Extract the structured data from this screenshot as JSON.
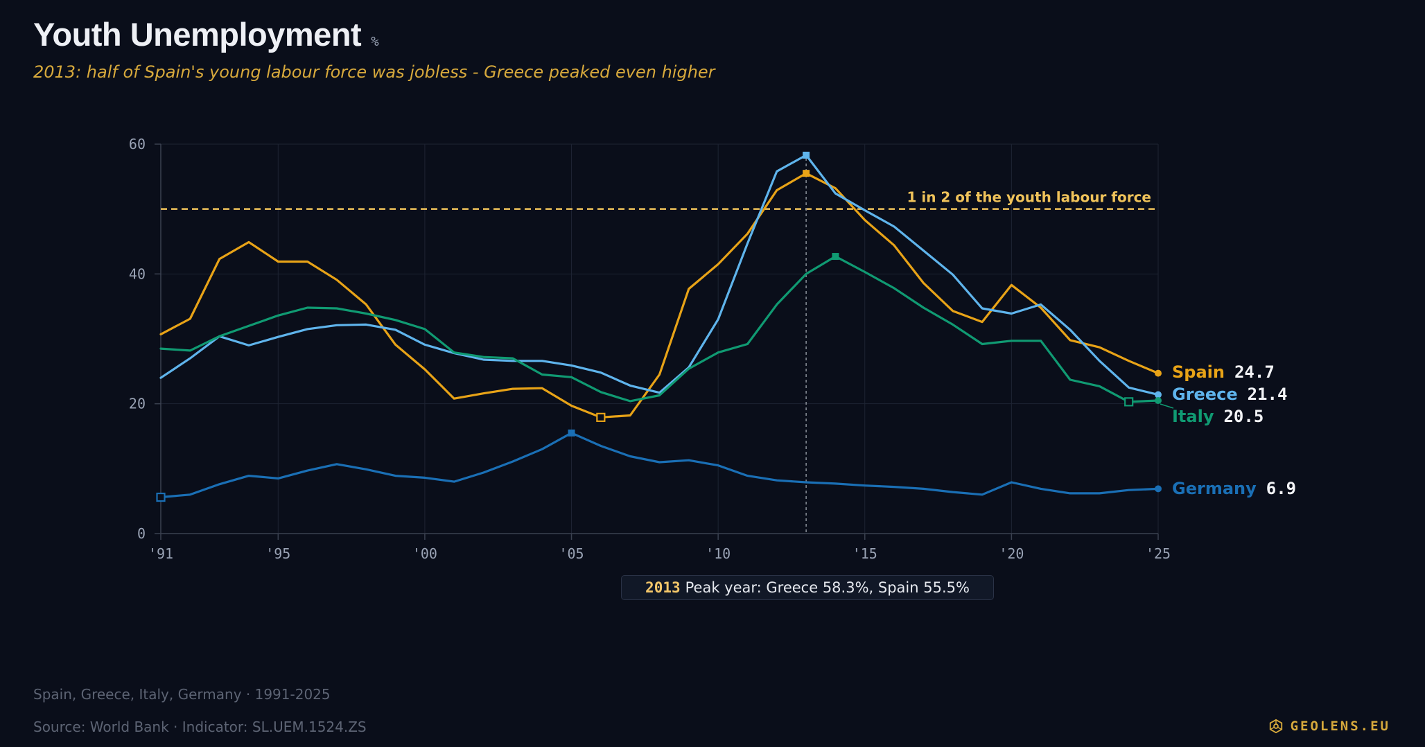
{
  "header": {
    "title": "Youth Unemployment",
    "unit": "%",
    "subtitle": "2013: half of Spain's young labour force was jobless - Greece peaked even higher"
  },
  "annotations": {
    "threshold_label": "1 in 2 of the youth labour force",
    "threshold_value": 50,
    "peak_year": "2013",
    "peak_text": "Peak year: Greece 58.3%, Spain 55.5%",
    "peak_marker_x": 2013
  },
  "footer": {
    "note": "Spain, Greece, Italy, Germany · 1991-2025",
    "source": "Source: World Bank · Indicator: SL.UEM.1524.ZS",
    "brand": "GEOLENS.EU"
  },
  "colors": {
    "background": "#0a0e1a",
    "Spain": "#e8a317",
    "Greece": "#5fb4ec",
    "Italy": "#109a72",
    "Germany": "#1a6fb5",
    "threshold": "#f0c35a",
    "grid": "#1e2433",
    "axis": "#3a4150",
    "tick": "#9aa3b5"
  },
  "chart_data": {
    "type": "line",
    "x": [
      1991,
      1992,
      1993,
      1994,
      1995,
      1996,
      1997,
      1998,
      1999,
      2000,
      2001,
      2002,
      2003,
      2004,
      2005,
      2006,
      2007,
      2008,
      2009,
      2010,
      2011,
      2012,
      2013,
      2014,
      2015,
      2016,
      2017,
      2018,
      2019,
      2020,
      2021,
      2022,
      2023,
      2024,
      2025
    ],
    "xtick_values": [
      1991,
      1995,
      2000,
      2005,
      2010,
      2015,
      2020,
      2025
    ],
    "xtick_labels": [
      "'91",
      "'95",
      "'00",
      "'05",
      "'10",
      "'15",
      "'20",
      "'25"
    ],
    "ytick_values": [
      0,
      20,
      40,
      60
    ],
    "ylim": [
      0,
      60
    ],
    "series": [
      {
        "name": "Spain",
        "end_label": "24.7",
        "values": [
          30.7,
          33.1,
          42.3,
          44.9,
          41.9,
          41.9,
          39.1,
          35.3,
          29.1,
          25.3,
          20.8,
          21.6,
          22.3,
          22.4,
          19.7,
          17.9,
          18.2,
          24.5,
          37.7,
          41.5,
          46.2,
          52.9,
          55.5,
          53.2,
          48.3,
          44.4,
          38.6,
          34.3,
          32.6,
          38.3,
          34.8,
          29.8,
          28.7,
          26.6,
          24.7
        ],
        "markers": [
          {
            "x": 2006,
            "kind": "hollow"
          },
          {
            "x": 2013,
            "kind": "filled"
          }
        ]
      },
      {
        "name": "Greece",
        "end_label": "21.4",
        "values": [
          24.0,
          27.0,
          30.4,
          29.0,
          30.3,
          31.5,
          32.1,
          32.2,
          31.4,
          29.1,
          27.8,
          26.8,
          26.6,
          26.6,
          25.9,
          24.8,
          22.8,
          21.7,
          25.6,
          33.0,
          44.7,
          55.8,
          58.3,
          52.4,
          49.8,
          47.3,
          43.6,
          39.9,
          34.7,
          33.9,
          35.3,
          31.4,
          26.6,
          22.5,
          21.4
        ],
        "markers": [
          {
            "x": 2013,
            "kind": "filled"
          }
        ]
      },
      {
        "name": "Italy",
        "end_label": "20.5",
        "values": [
          28.5,
          28.2,
          30.4,
          32.0,
          33.6,
          34.8,
          34.7,
          33.9,
          32.9,
          31.5,
          27.9,
          27.2,
          27.0,
          24.5,
          24.1,
          21.8,
          20.4,
          21.3,
          25.4,
          27.9,
          29.2,
          35.3,
          40.0,
          42.7,
          40.3,
          37.8,
          34.8,
          32.2,
          29.2,
          29.7,
          29.7,
          23.7,
          22.7,
          20.3,
          20.5
        ],
        "markers": [
          {
            "x": 2014,
            "kind": "filled"
          },
          {
            "x": 2024,
            "kind": "hollow"
          }
        ]
      },
      {
        "name": "Germany",
        "end_label": "6.9",
        "values": [
          5.6,
          6.0,
          7.6,
          8.9,
          8.5,
          9.7,
          10.7,
          9.9,
          8.9,
          8.6,
          8.0,
          9.4,
          11.1,
          13.0,
          15.5,
          13.5,
          11.9,
          11.0,
          11.3,
          10.5,
          8.9,
          8.2,
          7.9,
          7.7,
          7.4,
          7.2,
          6.9,
          6.4,
          6.0,
          7.9,
          6.9,
          6.2,
          6.2,
          6.7,
          6.9
        ],
        "markers": [
          {
            "x": 1991,
            "kind": "hollow"
          },
          {
            "x": 2005,
            "kind": "filled"
          }
        ]
      }
    ]
  }
}
